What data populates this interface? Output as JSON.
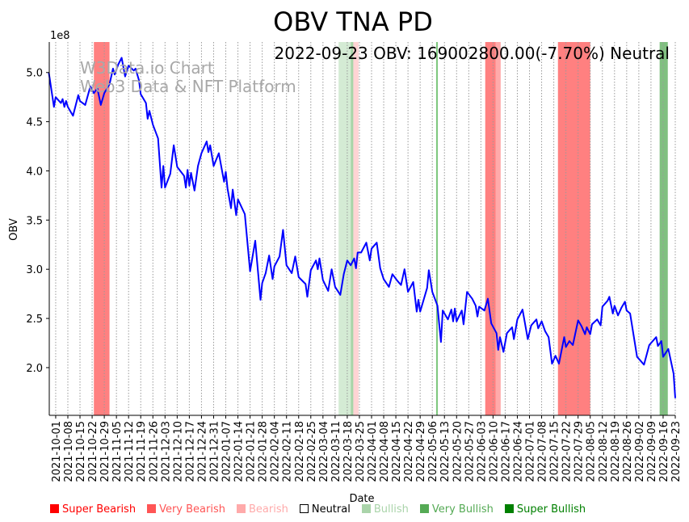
{
  "chart_data": {
    "type": "line",
    "title": "OBV TNA PD",
    "subtitle": "2022-09-23 OBV: 169002800.00(-7.70%) Neutral",
    "watermark": [
      "W3Data.io Chart",
      "Web3 Data & NFT Platform"
    ],
    "xlabel": "Date",
    "ylabel": "OBV",
    "y_scale_label": "1e8",
    "y_unit_multiplier": 100000000,
    "ylim": [
      1.515,
      5.31
    ],
    "yticks": [
      2.0,
      2.5,
      3.0,
      3.5,
      4.0,
      4.5,
      5.0
    ],
    "ytick_labels": [
      "2.0",
      "2.5",
      "3.0",
      "3.5",
      "4.0",
      "4.5",
      "5.0"
    ],
    "x_start_date": "2021-10-01",
    "x_units": "days since 2021-10-01",
    "xlim": [
      -3.7,
      357
    ],
    "xtick_labels": [
      "2021-10-01",
      "2021-10-08",
      "2021-10-15",
      "2021-10-22",
      "2021-10-29",
      "2021-11-05",
      "2021-11-12",
      "2021-11-19",
      "2021-11-26",
      "2021-12-03",
      "2021-12-10",
      "2021-12-17",
      "2021-12-24",
      "2021-12-31",
      "2022-01-07",
      "2022-01-14",
      "2022-01-21",
      "2022-01-28",
      "2022-02-04",
      "2022-02-11",
      "2022-02-18",
      "2022-02-25",
      "2022-03-04",
      "2022-03-11",
      "2022-03-18",
      "2022-03-25",
      "2022-04-01",
      "2022-04-08",
      "2022-04-15",
      "2022-04-22",
      "2022-04-29",
      "2022-05-06",
      "2022-05-13",
      "2022-05-20",
      "2022-05-27",
      "2022-06-03",
      "2022-06-10",
      "2022-06-17",
      "2022-06-24",
      "2022-07-01",
      "2022-07-08",
      "2022-07-15",
      "2022-07-22",
      "2022-07-29",
      "2022-08-05",
      "2022-08-12",
      "2022-08-19",
      "2022-08-26",
      "2022-09-02",
      "2022-09-09",
      "2022-09-16",
      "2022-09-23"
    ],
    "grid": "x-dotted",
    "line_color": "#0000ff",
    "series": [
      {
        "name": "OBV",
        "points": [
          [
            -4,
            5.0
          ],
          [
            -1,
            4.65
          ],
          [
            0,
            4.75
          ],
          [
            3,
            4.69
          ],
          [
            4,
            4.73
          ],
          [
            5,
            4.65
          ],
          [
            6,
            4.71
          ],
          [
            7,
            4.65
          ],
          [
            9,
            4.59
          ],
          [
            10,
            4.56
          ],
          [
            13,
            4.77
          ],
          [
            14,
            4.71
          ],
          [
            17,
            4.67
          ],
          [
            20,
            4.86
          ],
          [
            22,
            4.79
          ],
          [
            24,
            4.84
          ],
          [
            26,
            4.67
          ],
          [
            28,
            4.79
          ],
          [
            31,
            4.88
          ],
          [
            33,
            5.04
          ],
          [
            34,
            4.98
          ],
          [
            36,
            5.08
          ],
          [
            38,
            5.15
          ],
          [
            40,
            4.96
          ],
          [
            42,
            5.07
          ],
          [
            45,
            5.02
          ],
          [
            46,
            5.04
          ],
          [
            48,
            4.92
          ],
          [
            49,
            4.78
          ],
          [
            52,
            4.69
          ],
          [
            53,
            4.53
          ],
          [
            54,
            4.61
          ],
          [
            56,
            4.47
          ],
          [
            59,
            4.33
          ],
          [
            61,
            3.83
          ],
          [
            62,
            4.05
          ],
          [
            63,
            3.83
          ],
          [
            66,
            3.97
          ],
          [
            68,
            4.26
          ],
          [
            70,
            4.04
          ],
          [
            74,
            3.95
          ],
          [
            75,
            3.83
          ],
          [
            76,
            4.01
          ],
          [
            77,
            3.85
          ],
          [
            78,
            3.98
          ],
          [
            80,
            3.8
          ],
          [
            82,
            4.05
          ],
          [
            84,
            4.18
          ],
          [
            87,
            4.3
          ],
          [
            88,
            4.19
          ],
          [
            89,
            4.26
          ],
          [
            91,
            4.05
          ],
          [
            94,
            4.18
          ],
          [
            97,
            3.89
          ],
          [
            98,
            3.99
          ],
          [
            99,
            3.82
          ],
          [
            101,
            3.62
          ],
          [
            102,
            3.81
          ],
          [
            104,
            3.55
          ],
          [
            105,
            3.71
          ],
          [
            109,
            3.56
          ],
          [
            112,
            2.98
          ],
          [
            115,
            3.29
          ],
          [
            118,
            2.69
          ],
          [
            119,
            2.86
          ],
          [
            121,
            2.96
          ],
          [
            123,
            3.14
          ],
          [
            125,
            2.9
          ],
          [
            126,
            3.03
          ],
          [
            129,
            3.13
          ],
          [
            131,
            3.4
          ],
          [
            133,
            3.04
          ],
          [
            136,
            2.96
          ],
          [
            138,
            3.13
          ],
          [
            140,
            2.92
          ],
          [
            144,
            2.85
          ],
          [
            145,
            2.72
          ],
          [
            147,
            2.99
          ],
          [
            150,
            3.09
          ],
          [
            151,
            3.0
          ],
          [
            152,
            3.11
          ],
          [
            154,
            2.89
          ],
          [
            157,
            2.78
          ],
          [
            159,
            3.0
          ],
          [
            161,
            2.82
          ],
          [
            164,
            2.74
          ],
          [
            166,
            2.95
          ],
          [
            168,
            3.09
          ],
          [
            170,
            3.04
          ],
          [
            172,
            3.11
          ],
          [
            173,
            3.01
          ],
          [
            174,
            3.17
          ],
          [
            176,
            3.17
          ],
          [
            179,
            3.27
          ],
          [
            181,
            3.09
          ],
          [
            182,
            3.21
          ],
          [
            185,
            3.27
          ],
          [
            187,
            3.01
          ],
          [
            189,
            2.9
          ],
          [
            192,
            2.82
          ],
          [
            194,
            2.95
          ],
          [
            197,
            2.88
          ],
          [
            199,
            2.84
          ],
          [
            201,
            3.0
          ],
          [
            203,
            2.77
          ],
          [
            206,
            2.87
          ],
          [
            208,
            2.57
          ],
          [
            209,
            2.69
          ],
          [
            210,
            2.57
          ],
          [
            212,
            2.69
          ],
          [
            214,
            2.81
          ],
          [
            215,
            2.99
          ],
          [
            217,
            2.77
          ],
          [
            220,
            2.63
          ],
          [
            222,
            2.26
          ],
          [
            223,
            2.58
          ],
          [
            226,
            2.49
          ],
          [
            228,
            2.59
          ],
          [
            229,
            2.47
          ],
          [
            230,
            2.6
          ],
          [
            231,
            2.47
          ],
          [
            234,
            2.58
          ],
          [
            235,
            2.44
          ],
          [
            237,
            2.77
          ],
          [
            240,
            2.7
          ],
          [
            242,
            2.63
          ],
          [
            243,
            2.52
          ],
          [
            244,
            2.62
          ],
          [
            247,
            2.58
          ],
          [
            249,
            2.7
          ],
          [
            251,
            2.45
          ],
          [
            254,
            2.35
          ],
          [
            255,
            2.18
          ],
          [
            256,
            2.31
          ],
          [
            258,
            2.16
          ],
          [
            260,
            2.35
          ],
          [
            263,
            2.41
          ],
          [
            264,
            2.29
          ],
          [
            266,
            2.49
          ],
          [
            269,
            2.59
          ],
          [
            272,
            2.29
          ],
          [
            274,
            2.43
          ],
          [
            277,
            2.49
          ],
          [
            278,
            2.4
          ],
          [
            280,
            2.47
          ],
          [
            282,
            2.37
          ],
          [
            284,
            2.31
          ],
          [
            286,
            2.04
          ],
          [
            288,
            2.12
          ],
          [
            290,
            2.04
          ],
          [
            293,
            2.31
          ],
          [
            294,
            2.21
          ],
          [
            296,
            2.27
          ],
          [
            298,
            2.23
          ],
          [
            301,
            2.48
          ],
          [
            303,
            2.42
          ],
          [
            305,
            2.34
          ],
          [
            306,
            2.41
          ],
          [
            308,
            2.34
          ],
          [
            309,
            2.44
          ],
          [
            312,
            2.49
          ],
          [
            314,
            2.43
          ],
          [
            315,
            2.62
          ],
          [
            318,
            2.68
          ],
          [
            319,
            2.72
          ],
          [
            321,
            2.55
          ],
          [
            322,
            2.63
          ],
          [
            324,
            2.53
          ],
          [
            326,
            2.61
          ],
          [
            328,
            2.67
          ],
          [
            329,
            2.58
          ],
          [
            331,
            2.55
          ],
          [
            333,
            2.33
          ],
          [
            335,
            2.11
          ],
          [
            339,
            2.03
          ],
          [
            342,
            2.23
          ],
          [
            346,
            2.31
          ],
          [
            347,
            2.22
          ],
          [
            349,
            2.27
          ],
          [
            350,
            2.11
          ],
          [
            353,
            2.19
          ],
          [
            356,
            1.94
          ],
          [
            357,
            1.69
          ]
        ]
      }
    ],
    "signal_bands": [
      {
        "signal": "very-bearish",
        "start": 22,
        "end": 31,
        "color": "#ff8080"
      },
      {
        "signal": "bullish",
        "start": 163,
        "end": 170,
        "color": "#d4ebd4"
      },
      {
        "signal": "very-bullish",
        "start": 170,
        "end": 171.5,
        "color": "#a8d4a8"
      },
      {
        "signal": "bearish",
        "start": 171.5,
        "end": 174.5,
        "color": "#ffd4d4"
      },
      {
        "signal": "very-bullish",
        "start": 219.2,
        "end": 220.2,
        "color": "#80c880"
      },
      {
        "signal": "very-bearish",
        "start": 247.5,
        "end": 253.6,
        "color": "#ff8080"
      },
      {
        "signal": "bearish",
        "start": 253.6,
        "end": 256.4,
        "color": "#ffaaaa"
      },
      {
        "signal": "very-bearish",
        "start": 289.4,
        "end": 308,
        "color": "#ff8080"
      },
      {
        "signal": "very-bullish",
        "start": 348,
        "end": 352.7,
        "color": "#80c080"
      }
    ],
    "legend_position": "bottom",
    "legend": [
      {
        "label": "Super Bearish",
        "color": "#ff0000"
      },
      {
        "label": "Very Bearish",
        "color": "#ff5555"
      },
      {
        "label": "Bearish",
        "color": "#ffaaaa"
      },
      {
        "label": "Neutral",
        "color": "#ffffff"
      },
      {
        "label": "Bullish",
        "color": "#aad4aa"
      },
      {
        "label": "Very Bullish",
        "color": "#55aa55"
      },
      {
        "label": "Super Bullish",
        "color": "#008000"
      }
    ]
  }
}
